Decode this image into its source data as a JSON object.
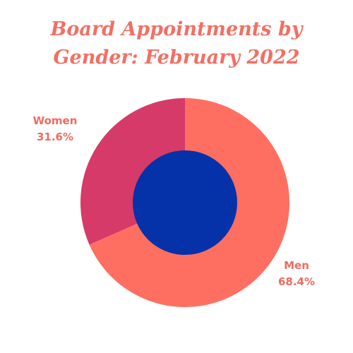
{
  "chart_data": {
    "type": "pie",
    "title_lines": [
      "Board Appointments by",
      "Gender: February 2022"
    ],
    "donut": true,
    "slices": [
      {
        "label": "Men",
        "value": 68.4,
        "value_label": "68.4%",
        "color": "#ff6f61"
      },
      {
        "label": "Women",
        "value": 31.6,
        "value_label": "31.6%",
        "color": "#d63a68"
      }
    ],
    "hole_color": "#0532a8",
    "title_color": "#f26f63",
    "label_color": "#ef6b5f"
  }
}
